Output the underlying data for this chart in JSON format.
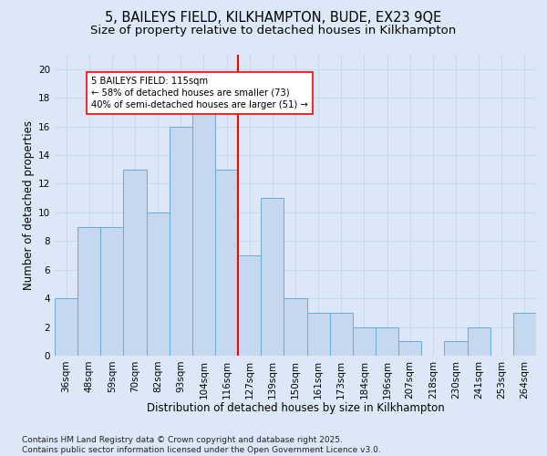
{
  "title1": "5, BAILEYS FIELD, KILKHAMPTON, BUDE, EX23 9QE",
  "title2": "Size of property relative to detached houses in Kilkhampton",
  "xlabel": "Distribution of detached houses by size in Kilkhampton",
  "ylabel": "Number of detached properties",
  "categories": [
    "36sqm",
    "48sqm",
    "59sqm",
    "70sqm",
    "82sqm",
    "93sqm",
    "104sqm",
    "116sqm",
    "127sqm",
    "139sqm",
    "150sqm",
    "161sqm",
    "173sqm",
    "184sqm",
    "196sqm",
    "207sqm",
    "218sqm",
    "230sqm",
    "241sqm",
    "253sqm",
    "264sqm"
  ],
  "values": [
    4,
    9,
    9,
    13,
    10,
    16,
    17,
    13,
    7,
    11,
    4,
    3,
    3,
    2,
    2,
    1,
    0,
    1,
    2,
    0,
    3
  ],
  "bar_color": "#c5d8f0",
  "bar_edge_color": "#6aaad4",
  "ref_line_x": 7.5,
  "ref_line_color": "red",
  "annotation_text": "5 BAILEYS FIELD: 115sqm\n← 58% of detached houses are smaller (73)\n40% of semi-detached houses are larger (51) →",
  "annotation_box_color": "white",
  "annotation_box_edge_color": "red",
  "ylim": [
    0,
    21
  ],
  "yticks": [
    0,
    2,
    4,
    6,
    8,
    10,
    12,
    14,
    16,
    18,
    20
  ],
  "grid_color": "#c8d8ee",
  "background_color": "#dce8f8",
  "footnote": "Contains HM Land Registry data © Crown copyright and database right 2025.\nContains public sector information licensed under the Open Government Licence v3.0.",
  "title_fontsize": 10.5,
  "subtitle_fontsize": 9.5,
  "label_fontsize": 8.5,
  "tick_fontsize": 7.5,
  "footnote_fontsize": 6.5
}
